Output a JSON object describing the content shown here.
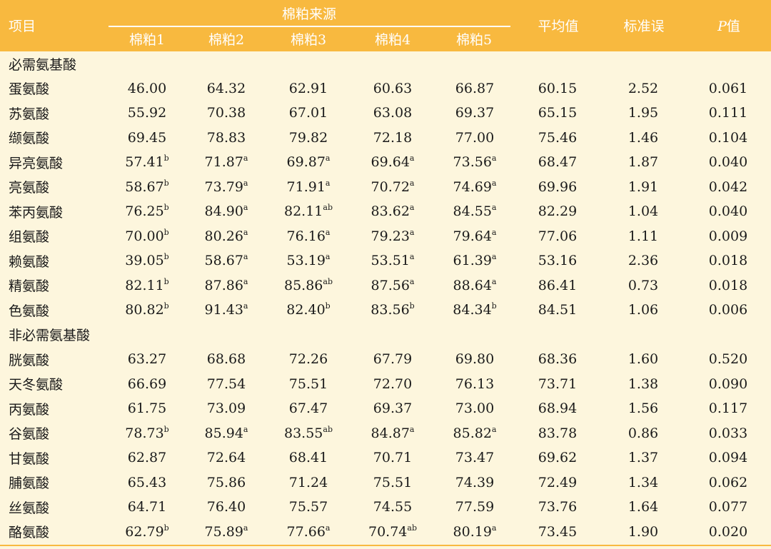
{
  "header": {
    "item": "项目",
    "group": "棉粕来源",
    "sources": [
      "棉粕1",
      "棉粕2",
      "棉粕3",
      "棉粕4",
      "棉粕5"
    ],
    "mean": "平均值",
    "sem": "标准误",
    "p_var": "P",
    "p_suffix": "值"
  },
  "sections": [
    {
      "title": "必需氨基酸",
      "rows": [
        {
          "name": "蛋氨酸",
          "cells": [
            [
              "46.00",
              ""
            ],
            [
              "64.32",
              ""
            ],
            [
              "62.91",
              ""
            ],
            [
              "60.63",
              ""
            ],
            [
              "66.87",
              ""
            ]
          ],
          "mean": "60.15",
          "sem": "2.52",
          "p": "0.061"
        },
        {
          "name": "苏氨酸",
          "cells": [
            [
              "55.92",
              ""
            ],
            [
              "70.38",
              ""
            ],
            [
              "67.01",
              ""
            ],
            [
              "63.08",
              ""
            ],
            [
              "69.37",
              ""
            ]
          ],
          "mean": "65.15",
          "sem": "1.95",
          "p": "0.111"
        },
        {
          "name": "缬氨酸",
          "cells": [
            [
              "69.45",
              ""
            ],
            [
              "78.83",
              ""
            ],
            [
              "79.82",
              ""
            ],
            [
              "72.18",
              ""
            ],
            [
              "77.00",
              ""
            ]
          ],
          "mean": "75.46",
          "sem": "1.46",
          "p": "0.104"
        },
        {
          "name": "异亮氨酸",
          "cells": [
            [
              "57.41",
              "b"
            ],
            [
              "71.87",
              "a"
            ],
            [
              "69.87",
              "a"
            ],
            [
              "69.64",
              "a"
            ],
            [
              "73.56",
              "a"
            ]
          ],
          "mean": "68.47",
          "sem": "1.87",
          "p": "0.040"
        },
        {
          "name": "亮氨酸",
          "cells": [
            [
              "58.67",
              "b"
            ],
            [
              "73.79",
              "a"
            ],
            [
              "71.91",
              "a"
            ],
            [
              "70.72",
              "a"
            ],
            [
              "74.69",
              "a"
            ]
          ],
          "mean": "69.96",
          "sem": "1.91",
          "p": "0.042"
        },
        {
          "name": "苯丙氨酸",
          "cells": [
            [
              "76.25",
              "b"
            ],
            [
              "84.90",
              "a"
            ],
            [
              "82.11",
              "ab"
            ],
            [
              "83.62",
              "a"
            ],
            [
              "84.55",
              "a"
            ]
          ],
          "mean": "82.29",
          "sem": "1.04",
          "p": "0.040"
        },
        {
          "name": "组氨酸",
          "cells": [
            [
              "70.00",
              "b"
            ],
            [
              "80.26",
              "a"
            ],
            [
              "76.16",
              "a"
            ],
            [
              "79.23",
              "a"
            ],
            [
              "79.64",
              "a"
            ]
          ],
          "mean": "77.06",
          "sem": "1.11",
          "p": "0.009"
        },
        {
          "name": "赖氨酸",
          "cells": [
            [
              "39.05",
              "b"
            ],
            [
              "58.67",
              "a"
            ],
            [
              "53.19",
              "a"
            ],
            [
              "53.51",
              "a"
            ],
            [
              "61.39",
              "a"
            ]
          ],
          "mean": "53.16",
          "sem": "2.36",
          "p": "0.018"
        },
        {
          "name": "精氨酸",
          "cells": [
            [
              "82.11",
              "b"
            ],
            [
              "87.86",
              "a"
            ],
            [
              "85.86",
              "ab"
            ],
            [
              "87.56",
              "a"
            ],
            [
              "88.64",
              "a"
            ]
          ],
          "mean": "86.41",
          "sem": "0.73",
          "p": "0.018"
        },
        {
          "name": "色氨酸",
          "cells": [
            [
              "80.82",
              "b"
            ],
            [
              "91.43",
              "a"
            ],
            [
              "82.40",
              "b"
            ],
            [
              "83.56",
              "b"
            ],
            [
              "84.34",
              "b"
            ]
          ],
          "mean": "84.51",
          "sem": "1.06",
          "p": "0.006"
        }
      ]
    },
    {
      "title": "非必需氨基酸",
      "rows": [
        {
          "name": "胱氨酸",
          "cells": [
            [
              "63.27",
              ""
            ],
            [
              "68.68",
              ""
            ],
            [
              "72.26",
              ""
            ],
            [
              "67.79",
              ""
            ],
            [
              "69.80",
              ""
            ]
          ],
          "mean": "68.36",
          "sem": "1.60",
          "p": "0.520"
        },
        {
          "name": "天冬氨酸",
          "cells": [
            [
              "66.69",
              ""
            ],
            [
              "77.54",
              ""
            ],
            [
              "75.51",
              ""
            ],
            [
              "72.70",
              ""
            ],
            [
              "76.13",
              ""
            ]
          ],
          "mean": "73.71",
          "sem": "1.38",
          "p": "0.090"
        },
        {
          "name": "丙氨酸",
          "cells": [
            [
              "61.75",
              ""
            ],
            [
              "73.09",
              ""
            ],
            [
              "67.47",
              ""
            ],
            [
              "69.37",
              ""
            ],
            [
              "73.00",
              ""
            ]
          ],
          "mean": "68.94",
          "sem": "1.56",
          "p": "0.117"
        },
        {
          "name": "谷氨酸",
          "cells": [
            [
              "78.73",
              "b"
            ],
            [
              "85.94",
              "a"
            ],
            [
              "83.55",
              "ab"
            ],
            [
              "84.87",
              "a"
            ],
            [
              "85.82",
              "a"
            ]
          ],
          "mean": "83.78",
          "sem": "0.86",
          "p": "0.033"
        },
        {
          "name": "甘氨酸",
          "cells": [
            [
              "62.87",
              ""
            ],
            [
              "72.64",
              ""
            ],
            [
              "68.41",
              ""
            ],
            [
              "70.71",
              ""
            ],
            [
              "73.47",
              ""
            ]
          ],
          "mean": "69.62",
          "sem": "1.37",
          "p": "0.094"
        },
        {
          "name": "脯氨酸",
          "cells": [
            [
              "65.43",
              ""
            ],
            [
              "75.86",
              ""
            ],
            [
              "71.24",
              ""
            ],
            [
              "75.51",
              ""
            ],
            [
              "74.39",
              ""
            ]
          ],
          "mean": "72.49",
          "sem": "1.34",
          "p": "0.062"
        },
        {
          "name": "丝氨酸",
          "cells": [
            [
              "64.71",
              ""
            ],
            [
              "76.40",
              ""
            ],
            [
              "75.57",
              ""
            ],
            [
              "74.55",
              ""
            ],
            [
              "77.59",
              ""
            ]
          ],
          "mean": "73.76",
          "sem": "1.64",
          "p": "0.077"
        },
        {
          "name": "酪氨酸",
          "cells": [
            [
              "62.79",
              "b"
            ],
            [
              "75.89",
              "a"
            ],
            [
              "77.66",
              "a"
            ],
            [
              "70.74",
              "ab"
            ],
            [
              "80.19",
              "a"
            ]
          ],
          "mean": "73.45",
          "sem": "1.90",
          "p": "0.020"
        }
      ]
    }
  ],
  "colors": {
    "header": "#f8b93f",
    "body": "#fdf6dd"
  }
}
